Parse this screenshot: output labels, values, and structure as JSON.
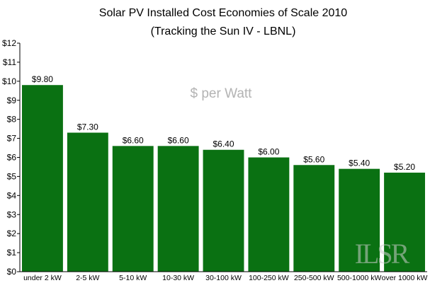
{
  "chart_data": {
    "type": "bar",
    "title": "Solar PV Installed Cost Economies of Scale 2010",
    "subtitle": "(Tracking the Sun IV - LBNL)",
    "annotation": "$ per Watt",
    "watermark_text": "ILSR",
    "categories": [
      "under 2 kW",
      "2-5 kW",
      "5-10 kW",
      "10-30 kW",
      "30-100 kW",
      "100-250 kW",
      "250-500 kW",
      "500-1000 kW",
      "over 1000 kW"
    ],
    "values": [
      9.8,
      7.3,
      6.6,
      6.6,
      6.4,
      6.0,
      5.6,
      5.4,
      5.2
    ],
    "value_labels": [
      "$9.80",
      "$7.30",
      "$6.60",
      "$6.60",
      "$6.40",
      "$6.00",
      "$5.60",
      "$5.40",
      "$5.20"
    ],
    "ylim": [
      0,
      12
    ],
    "ytick_labels": [
      "$0",
      "$1",
      "$2",
      "$3",
      "$4",
      "$5",
      "$6",
      "$7",
      "$8",
      "$9",
      "$10",
      "$11",
      "$12"
    ],
    "xlabel": "",
    "ylabel": "",
    "grid": false,
    "legend": "none",
    "colors": {
      "bar": "#0a7112",
      "axis": "#000000",
      "annotation": "#b3b3b3",
      "watermark": "#cccccc"
    }
  }
}
